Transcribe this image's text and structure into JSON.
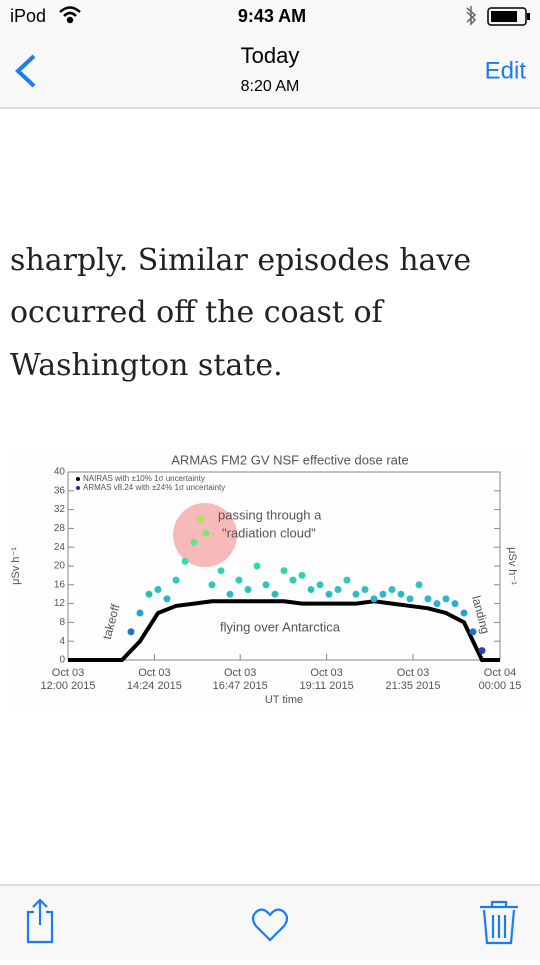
{
  "status_bar": {
    "carrier": "iPod",
    "time": "9:43 AM"
  },
  "nav": {
    "title": "Today",
    "subtitle": "8:20 AM",
    "edit": "Edit"
  },
  "article": {
    "lines": [
      "sharply. Similar episodes have",
      "occurred off the coast of",
      "Washington state."
    ]
  },
  "chart_data": {
    "type": "scatter",
    "title": "ARMAS FM2 GV NSF effective dose rate",
    "y_label": "μSv h⁻¹",
    "x_label": "UT time",
    "ylim": [
      0,
      40
    ],
    "yticks": [
      0,
      4,
      8,
      12,
      16,
      20,
      24,
      28,
      32,
      36,
      40
    ],
    "xlim": [
      "2015-10-03T12:00",
      "2015-10-04T00:00"
    ],
    "xticks": [
      {
        "value": "2015-10-03T12:00",
        "label": [
          "Oct 03",
          "12:00 2015"
        ]
      },
      {
        "value": "2015-10-03T14:24",
        "label": [
          "Oct 03",
          "14:24 2015"
        ]
      },
      {
        "value": "2015-10-03T16:47",
        "label": [
          "Oct 03",
          "16:47 2015"
        ]
      },
      {
        "value": "2015-10-03T19:11",
        "label": [
          "Oct 03",
          "19:11 2015"
        ]
      },
      {
        "value": "2015-10-03T21:35",
        "label": [
          "Oct 03",
          "21:35 2015"
        ]
      },
      {
        "value": "2015-10-04T00:00",
        "label": [
          "Oct 04",
          "00:00 15"
        ]
      }
    ],
    "annotations": [
      "passing through a",
      "\"radiation cloud\"",
      "flying over Antarctica",
      "takeoff",
      "landing"
    ],
    "series": [
      {
        "name": "NAIRAS with ±10% 1σ uncertainty",
        "color": "#000000",
        "x": [
          "2015-10-03T12:00",
          "2015-10-03T12:30",
          "2015-10-03T13:00",
          "2015-10-03T13:30",
          "2015-10-03T14:00",
          "2015-10-03T14:30",
          "2015-10-03T15:00",
          "2015-10-03T15:30",
          "2015-10-03T16:00",
          "2015-10-03T16:30",
          "2015-10-03T17:00",
          "2015-10-03T17:30",
          "2015-10-03T18:00",
          "2015-10-03T18:30",
          "2015-10-03T19:00",
          "2015-10-03T19:30",
          "2015-10-03T20:00",
          "2015-10-03T20:30",
          "2015-10-03T21:00",
          "2015-10-03T21:30",
          "2015-10-03T22:00",
          "2015-10-03T22:30",
          "2015-10-03T23:00",
          "2015-10-03T23:30",
          "2015-10-04T00:00"
        ],
        "values": [
          0,
          0,
          0,
          0,
          4,
          10,
          11.5,
          12,
          12.5,
          12.5,
          12.5,
          12.5,
          12.5,
          12,
          12,
          12,
          12,
          12.5,
          12,
          11.5,
          11,
          10,
          8,
          0,
          0
        ]
      },
      {
        "name": "ARMAS v8.24 with ±24% 1σ uncertainty",
        "color": "#1b2fa0",
        "colormap": [
          "#1b2fa0",
          "#2aa8d8",
          "#35e0a0",
          "#b8f040"
        ],
        "x": [
          "2015-10-03T13:45",
          "2015-10-03T14:00",
          "2015-10-03T14:15",
          "2015-10-03T14:30",
          "2015-10-03T14:45",
          "2015-10-03T15:00",
          "2015-10-03T15:15",
          "2015-10-03T15:30",
          "2015-10-03T15:40",
          "2015-10-03T15:50",
          "2015-10-03T16:00",
          "2015-10-03T16:15",
          "2015-10-03T16:30",
          "2015-10-03T16:45",
          "2015-10-03T17:00",
          "2015-10-03T17:15",
          "2015-10-03T17:30",
          "2015-10-03T17:45",
          "2015-10-03T18:00",
          "2015-10-03T18:15",
          "2015-10-03T18:30",
          "2015-10-03T18:45",
          "2015-10-03T19:00",
          "2015-10-03T19:15",
          "2015-10-03T19:30",
          "2015-10-03T19:45",
          "2015-10-03T20:00",
          "2015-10-03T20:15",
          "2015-10-03T20:30",
          "2015-10-03T20:45",
          "2015-10-03T21:00",
          "2015-10-03T21:15",
          "2015-10-03T21:30",
          "2015-10-03T21:45",
          "2015-10-03T22:00",
          "2015-10-03T22:15",
          "2015-10-03T22:30",
          "2015-10-03T22:45",
          "2015-10-03T23:00",
          "2015-10-03T23:15",
          "2015-10-03T23:30"
        ],
        "values": [
          6,
          10,
          14,
          15,
          13,
          17,
          21,
          25,
          30,
          27,
          16,
          19,
          14,
          17,
          15,
          20,
          16,
          14,
          19,
          17,
          18,
          15,
          16,
          14,
          15,
          17,
          14,
          15,
          13,
          14,
          15,
          14,
          13,
          16,
          13,
          12,
          13,
          12,
          10,
          6,
          2
        ]
      }
    ]
  }
}
